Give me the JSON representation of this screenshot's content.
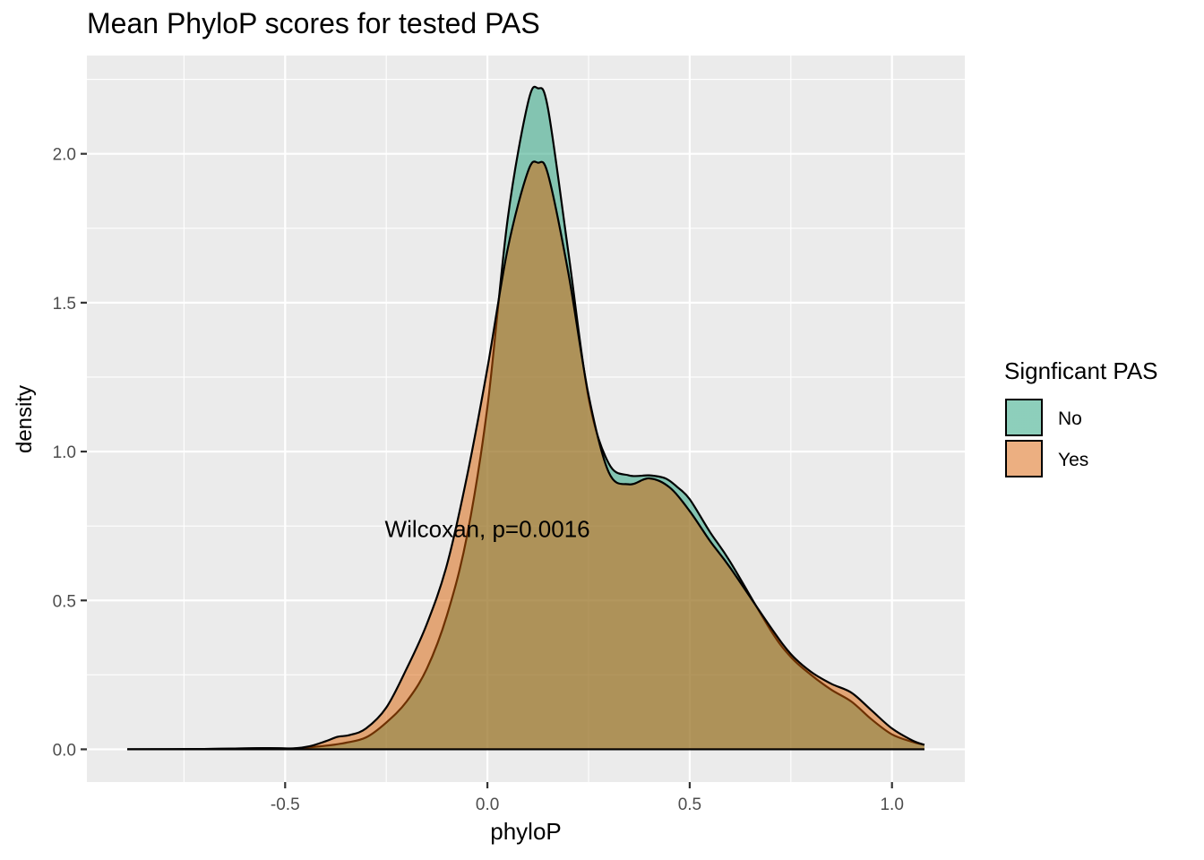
{
  "chart_data": {
    "type": "area",
    "title": "Mean PhyloP scores for tested PAS",
    "xlabel": "phyloP",
    "ylabel": "density",
    "xlim": [
      -0.99,
      1.18
    ],
    "ylim": [
      -0.11,
      2.33
    ],
    "x_ticks": [
      -0.5,
      0.0,
      0.5,
      1.0
    ],
    "x_tick_labels": [
      "-0.5",
      "0.0",
      "0.5",
      "1.0"
    ],
    "y_ticks": [
      0.0,
      0.5,
      1.0,
      1.5,
      2.0
    ],
    "y_tick_labels": [
      "0.0",
      "0.5",
      "1.0",
      "1.5",
      "2.0"
    ],
    "grid": true,
    "legend": {
      "title": "Signficant PAS",
      "position": "right"
    },
    "annotation": {
      "text": "Wilcoxan, p=0.0016",
      "x": 0.0,
      "y": 0.74
    },
    "series": [
      {
        "name": "No",
        "color": "#1B9E77",
        "x": [
          -0.89,
          -0.7,
          -0.55,
          -0.48,
          -0.4,
          -0.35,
          -0.3,
          -0.25,
          -0.2,
          -0.15,
          -0.1,
          -0.05,
          0.0,
          0.05,
          0.1,
          0.125,
          0.15,
          0.2,
          0.25,
          0.3,
          0.35,
          0.4,
          0.44,
          0.47,
          0.5,
          0.55,
          0.6,
          0.7,
          0.75,
          0.8,
          0.85,
          0.9,
          0.95,
          1.0,
          1.05,
          1.08
        ],
        "values": [
          0.0,
          0.001,
          0.004,
          0.003,
          0.012,
          0.022,
          0.04,
          0.09,
          0.16,
          0.27,
          0.45,
          0.72,
          1.15,
          1.78,
          2.17,
          2.22,
          2.15,
          1.67,
          1.18,
          0.96,
          0.92,
          0.92,
          0.91,
          0.88,
          0.84,
          0.73,
          0.63,
          0.4,
          0.31,
          0.25,
          0.2,
          0.16,
          0.1,
          0.05,
          0.025,
          0.015
        ]
      },
      {
        "name": "Yes",
        "color": "#D95F02",
        "x": [
          -0.89,
          -0.7,
          -0.55,
          -0.48,
          -0.44,
          -0.4,
          -0.37,
          -0.34,
          -0.3,
          -0.25,
          -0.2,
          -0.15,
          -0.1,
          -0.05,
          0.0,
          0.05,
          0.1,
          0.125,
          0.15,
          0.2,
          0.25,
          0.3,
          0.35,
          0.4,
          0.45,
          0.5,
          0.55,
          0.6,
          0.7,
          0.75,
          0.8,
          0.85,
          0.9,
          0.95,
          1.0,
          1.05,
          1.08
        ],
        "values": [
          0.0,
          0.001,
          0.004,
          0.003,
          0.01,
          0.027,
          0.042,
          0.048,
          0.07,
          0.14,
          0.27,
          0.42,
          0.62,
          0.92,
          1.28,
          1.68,
          1.94,
          1.97,
          1.93,
          1.6,
          1.19,
          0.93,
          0.89,
          0.91,
          0.88,
          0.8,
          0.7,
          0.61,
          0.41,
          0.32,
          0.26,
          0.22,
          0.19,
          0.13,
          0.07,
          0.03,
          0.015
        ]
      }
    ]
  }
}
